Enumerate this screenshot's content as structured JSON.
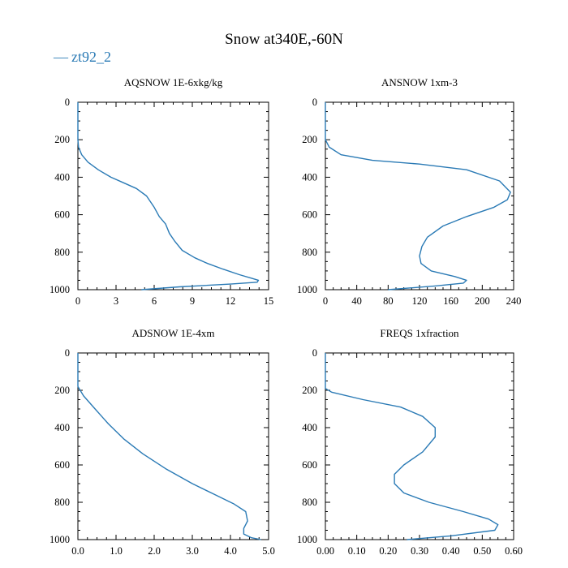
{
  "figure": {
    "title": "Snow at340E,-60N",
    "series_color": "#2a7ab5",
    "legend": {
      "marker": "—",
      "label": "zt92_2"
    }
  },
  "chart_data": [
    {
      "type": "line",
      "title": "AQSNOW  1E-6xkg/kg",
      "xlim": [
        0,
        15
      ],
      "ylim": [
        1000,
        0
      ],
      "xticks": [
        "0",
        "3",
        "6",
        "9",
        "12",
        "15"
      ],
      "xtick_values": [
        0,
        3,
        6,
        9,
        12,
        15
      ],
      "yticks": [
        "0",
        "200",
        "400",
        "600",
        "800",
        "1000"
      ],
      "ytick_values": [
        0,
        200,
        400,
        600,
        800,
        1000
      ],
      "series": [
        {
          "name": "zt92_2",
          "x": [
            0,
            0,
            0.05,
            0.3,
            0.8,
            1.6,
            2.6,
            3.6,
            4.6,
            5.4,
            6.0,
            6.4,
            6.9,
            7.2,
            7.6,
            8.2,
            9.2,
            10.2,
            11.4,
            12.7,
            13.7,
            14.2,
            14.1,
            12.0,
            8.0,
            5.0
          ],
          "y": [
            0,
            200,
            240,
            280,
            320,
            360,
            400,
            430,
            460,
            500,
            560,
            610,
            650,
            700,
            740,
            790,
            830,
            860,
            890,
            920,
            940,
            950,
            960,
            970,
            985,
            1000
          ]
        }
      ]
    },
    {
      "type": "line",
      "title": "ANSNOW  1xm-3",
      "xlim": [
        0,
        240
      ],
      "ylim": [
        1000,
        0
      ],
      "xticks": [
        "0",
        "40",
        "80",
        "120",
        "160",
        "200",
        "240"
      ],
      "xtick_values": [
        0,
        40,
        80,
        120,
        160,
        200,
        240
      ],
      "yticks": [
        "0",
        "200",
        "400",
        "600",
        "800",
        "1000"
      ],
      "ytick_values": [
        0,
        200,
        400,
        600,
        800,
        1000
      ],
      "series": [
        {
          "name": "zt92_2",
          "x": [
            0,
            0,
            5,
            20,
            60,
            120,
            180,
            222,
            236,
            232,
            215,
            180,
            150,
            130,
            123,
            120,
            122,
            135,
            165,
            180,
            176,
            140,
            80
          ],
          "y": [
            0,
            200,
            240,
            280,
            310,
            330,
            360,
            420,
            480,
            520,
            560,
            610,
            660,
            720,
            770,
            820,
            860,
            900,
            930,
            950,
            965,
            980,
            1000
          ]
        }
      ]
    },
    {
      "type": "line",
      "title": "ADSNOW  1E-4xm",
      "xlim": [
        0,
        5
      ],
      "ylim": [
        1000,
        0
      ],
      "xticks": [
        "0.0",
        "1.0",
        "2.0",
        "3.0",
        "4.0",
        "5.0"
      ],
      "xtick_values": [
        0,
        1,
        2,
        3,
        4,
        5
      ],
      "yticks": [
        "0",
        "200",
        "400",
        "600",
        "800",
        "1000"
      ],
      "ytick_values": [
        0,
        200,
        400,
        600,
        800,
        1000
      ],
      "series": [
        {
          "name": "zt92_2",
          "x": [
            0,
            0,
            0.15,
            0.45,
            0.8,
            1.2,
            1.7,
            2.3,
            3.0,
            3.6,
            4.1,
            4.4,
            4.45,
            4.35,
            4.35,
            4.55,
            4.8
          ],
          "y": [
            0,
            180,
            230,
            300,
            380,
            460,
            540,
            620,
            700,
            760,
            810,
            850,
            900,
            940,
            970,
            990,
            1000
          ]
        }
      ]
    },
    {
      "type": "line",
      "title": "FREQS  1xfraction",
      "xlim": [
        0,
        0.6
      ],
      "ylim": [
        1000,
        0
      ],
      "xticks": [
        "0.00",
        "0.10",
        "0.20",
        "0.30",
        "0.40",
        "0.50",
        "0.60"
      ],
      "xtick_values": [
        0,
        0.1,
        0.2,
        0.3,
        0.4,
        0.5,
        0.6
      ],
      "yticks": [
        "0",
        "200",
        "400",
        "600",
        "800",
        "1000"
      ],
      "ytick_values": [
        0,
        200,
        400,
        600,
        800,
        1000
      ],
      "series": [
        {
          "name": "zt92_2",
          "x": [
            0,
            0,
            0.02,
            0.12,
            0.24,
            0.31,
            0.35,
            0.35,
            0.31,
            0.25,
            0.22,
            0.22,
            0.25,
            0.33,
            0.44,
            0.52,
            0.55,
            0.54,
            0.4,
            0.26
          ],
          "y": [
            0,
            190,
            210,
            250,
            290,
            340,
            400,
            450,
            530,
            600,
            650,
            700,
            750,
            800,
            850,
            890,
            920,
            950,
            980,
            1000
          ]
        }
      ]
    }
  ]
}
